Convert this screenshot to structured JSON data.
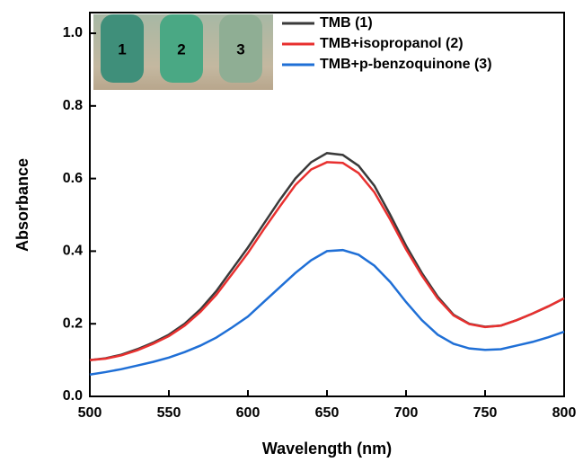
{
  "chart_data": {
    "type": "line",
    "x_label": "Wavelength (nm)",
    "y_label": "Absorbance",
    "x": [
      500,
      510,
      520,
      530,
      540,
      550,
      560,
      570,
      580,
      590,
      600,
      610,
      620,
      630,
      640,
      650,
      660,
      670,
      680,
      690,
      700,
      710,
      720,
      730,
      740,
      750,
      760,
      770,
      780,
      790,
      800
    ],
    "series": [
      {
        "name": "TMB (1)",
        "color": "#3a3a3a",
        "values": [
          0.1,
          0.105,
          0.115,
          0.13,
          0.148,
          0.17,
          0.2,
          0.24,
          0.29,
          0.35,
          0.41,
          0.475,
          0.54,
          0.6,
          0.645,
          0.67,
          0.665,
          0.635,
          0.58,
          0.5,
          0.415,
          0.34,
          0.275,
          0.225,
          0.2,
          0.192,
          0.195,
          0.21,
          0.228,
          0.248,
          0.27
        ]
      },
      {
        "name": "TMB+isopropanol (2)",
        "color": "#e8302f",
        "values": [
          0.1,
          0.104,
          0.113,
          0.127,
          0.145,
          0.166,
          0.195,
          0.233,
          0.28,
          0.337,
          0.395,
          0.46,
          0.522,
          0.582,
          0.625,
          0.645,
          0.643,
          0.615,
          0.562,
          0.487,
          0.405,
          0.333,
          0.27,
          0.223,
          0.199,
          0.191,
          0.195,
          0.21,
          0.228,
          0.248,
          0.27
        ]
      },
      {
        "name": "TMB+p-benzoquinone (3)",
        "color": "#1f6fd6",
        "values": [
          0.06,
          0.067,
          0.075,
          0.085,
          0.095,
          0.107,
          0.122,
          0.14,
          0.162,
          0.19,
          0.22,
          0.26,
          0.3,
          0.34,
          0.375,
          0.4,
          0.403,
          0.39,
          0.36,
          0.315,
          0.26,
          0.21,
          0.17,
          0.145,
          0.132,
          0.128,
          0.13,
          0.14,
          0.15,
          0.163,
          0.178
        ]
      }
    ],
    "xlim": [
      500,
      800
    ],
    "xticks": [
      500,
      550,
      600,
      650,
      700,
      750,
      800
    ],
    "ylim": [
      0,
      1.057
    ],
    "yticks": [
      {
        "value": 0,
        "label": "0.0"
      },
      {
        "value": 0.2,
        "label": "0.2"
      },
      {
        "value": 0.4,
        "label": "0.4"
      },
      {
        "value": 0.6,
        "label": "0.6"
      },
      {
        "value": 0.8,
        "label": "0.8"
      },
      {
        "value": 1.0,
        "label": "1.0"
      }
    ],
    "inset_labels": [
      "1",
      "2",
      "3"
    ]
  }
}
